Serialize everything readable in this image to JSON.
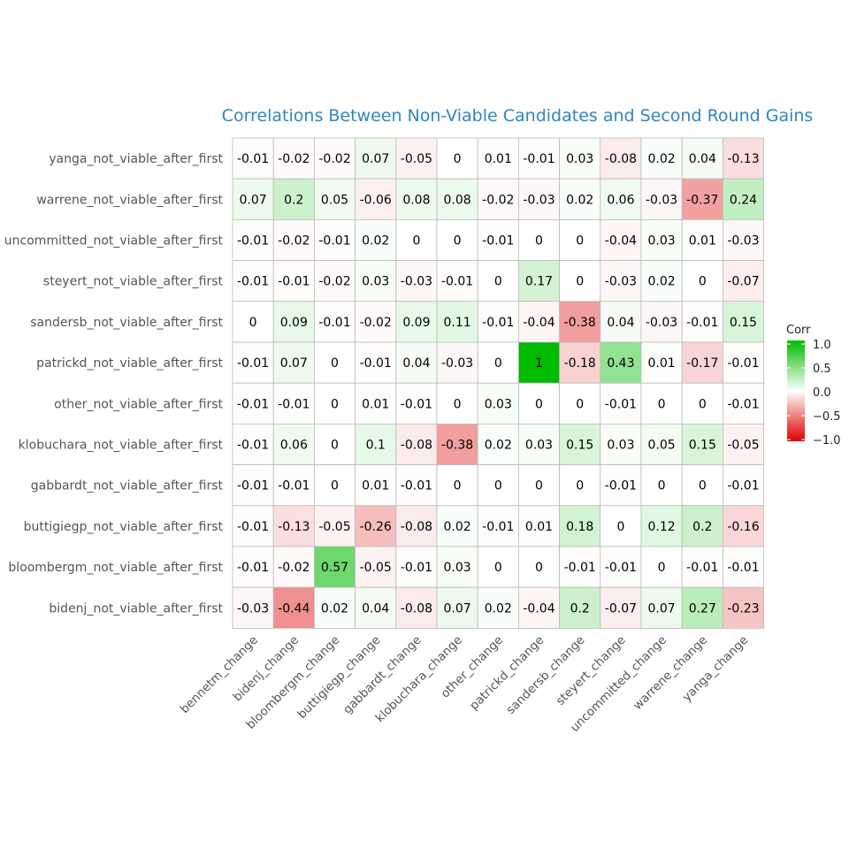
{
  "chart_data": {
    "type": "heatmap",
    "title": "Correlations Between Non-Viable Candidates and Second Round Gains",
    "legend": {
      "title": "Corr",
      "ticks": [
        "1.0",
        "0.5",
        "0.0",
        "−0.5",
        "−1.0"
      ],
      "tick_values": [
        1,
        0.5,
        0,
        -0.5,
        -1
      ],
      "range": [
        -1,
        1
      ],
      "placement": "right"
    },
    "colors": {
      "low": "#dd0000",
      "mid": "#ffffff",
      "high": "#00bb00",
      "grid": "#bbbbbb"
    },
    "columns": [
      "bennetm_change",
      "bidenj_change",
      "bloombergm_change",
      "buttigiegp_change",
      "gabbardt_change",
      "klobuchara_change",
      "other_change",
      "patrickd_change",
      "sandersb_change",
      "steyert_change",
      "uncommitted_change",
      "warrene_change",
      "yanga_change"
    ],
    "rows": [
      {
        "label": "yanga_not_viable_after_first",
        "values": [
          -0.01,
          -0.02,
          -0.02,
          0.07,
          -0.05,
          0,
          0.01,
          -0.01,
          0.03,
          -0.08,
          0.02,
          0.04,
          -0.13
        ]
      },
      {
        "label": "warrene_not_viable_after_first",
        "values": [
          0.07,
          0.2,
          0.05,
          -0.06,
          0.08,
          0.08,
          -0.02,
          -0.03,
          0.02,
          0.06,
          -0.03,
          -0.37,
          0.24
        ]
      },
      {
        "label": "uncommitted_not_viable_after_first",
        "values": [
          -0.01,
          -0.02,
          -0.01,
          0.02,
          0,
          0,
          -0.01,
          0,
          0,
          -0.04,
          0.03,
          0.01,
          -0.03
        ]
      },
      {
        "label": "steyert_not_viable_after_first",
        "values": [
          -0.01,
          -0.01,
          -0.02,
          0.03,
          -0.03,
          -0.01,
          0,
          0.17,
          0,
          -0.03,
          0.02,
          0,
          -0.07
        ]
      },
      {
        "label": "sandersb_not_viable_after_first",
        "values": [
          0,
          0.09,
          -0.01,
          -0.02,
          0.09,
          0.11,
          -0.01,
          -0.04,
          -0.38,
          0.04,
          -0.03,
          -0.01,
          0.15
        ]
      },
      {
        "label": "patrickd_not_viable_after_first",
        "values": [
          -0.01,
          0.07,
          0,
          -0.01,
          0.04,
          -0.03,
          0,
          1,
          -0.18,
          0.43,
          0.01,
          -0.17,
          -0.01
        ]
      },
      {
        "label": "other_not_viable_after_first",
        "values": [
          -0.01,
          -0.01,
          0,
          0.01,
          -0.01,
          0,
          0.03,
          0,
          0,
          -0.01,
          0,
          0,
          -0.01
        ]
      },
      {
        "label": "klobuchara_not_viable_after_first",
        "values": [
          -0.01,
          0.06,
          0,
          0.1,
          -0.08,
          -0.38,
          0.02,
          0.03,
          0.15,
          0.03,
          0.05,
          0.15,
          -0.05
        ]
      },
      {
        "label": "gabbardt_not_viable_after_first",
        "values": [
          -0.01,
          -0.01,
          0,
          0.01,
          -0.01,
          0,
          0,
          0,
          0,
          -0.01,
          0,
          0,
          -0.01
        ]
      },
      {
        "label": "buttigiegp_not_viable_after_first",
        "values": [
          -0.01,
          -0.13,
          -0.05,
          -0.26,
          -0.08,
          0.02,
          -0.01,
          0.01,
          0.18,
          0,
          0.12,
          0.2,
          -0.16
        ]
      },
      {
        "label": "bloombergm_not_viable_after_first",
        "values": [
          -0.01,
          -0.02,
          0.57,
          -0.05,
          -0.01,
          0.03,
          0,
          0,
          -0.01,
          -0.01,
          0,
          -0.01,
          -0.01
        ]
      },
      {
        "label": "bidenj_not_viable_after_first",
        "values": [
          -0.03,
          -0.44,
          0.02,
          0.04,
          -0.08,
          0.07,
          0.02,
          -0.04,
          0.2,
          -0.07,
          0.07,
          0.27,
          -0.23
        ]
      }
    ]
  }
}
